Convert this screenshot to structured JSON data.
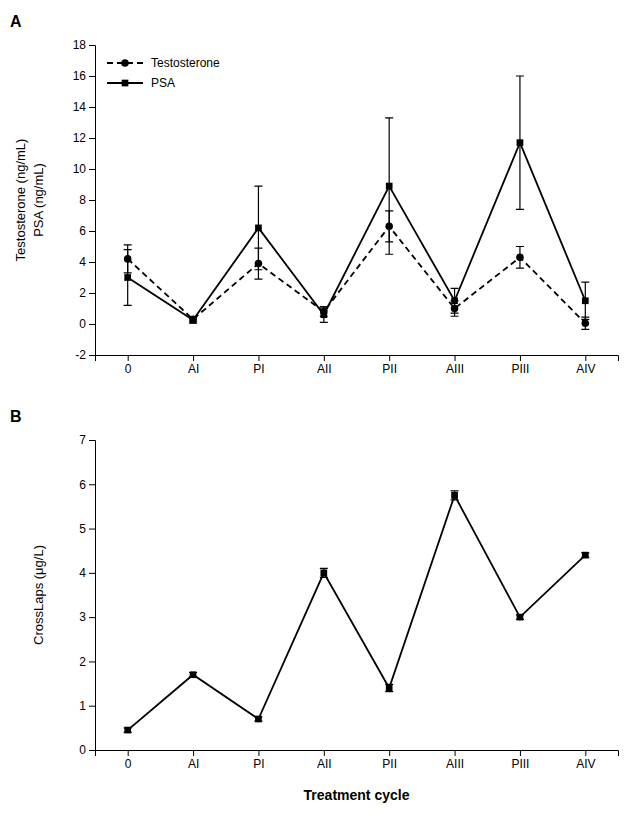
{
  "chart_data": [
    {
      "type": "line",
      "title": "A",
      "categories": [
        "0",
        "AI",
        "PI",
        "AII",
        "PII",
        "AIII",
        "PIII",
        "AIV"
      ],
      "ylabel": [
        "Testosterone (ng/mL)",
        "PSA (ng/mL)"
      ],
      "ylim": [
        -2,
        18
      ],
      "yticks": [
        -2,
        0,
        2,
        4,
        6,
        8,
        10,
        12,
        14,
        16,
        18
      ],
      "grid": false,
      "legend": "upper left",
      "series": [
        {
          "name": "Testosterone",
          "color": "#000000",
          "marker": "circle",
          "line_style": "dashed",
          "values": [
            4.2,
            0.3,
            3.9,
            0.8,
            6.3,
            1.0,
            4.3,
            0.05
          ],
          "errors": [
            0.9,
            0.15,
            1.0,
            0.3,
            1.0,
            0.5,
            0.7,
            0.4
          ]
        },
        {
          "name": "PSA",
          "color": "#000000",
          "marker": "square",
          "line_style": "solid",
          "values": [
            3.0,
            0.25,
            6.2,
            0.6,
            8.9,
            1.5,
            11.7,
            1.5
          ],
          "errors": [
            1.8,
            0.2,
            2.7,
            0.5,
            4.4,
            0.8,
            4.3,
            1.2
          ]
        }
      ]
    },
    {
      "type": "line",
      "title": "B",
      "categories": [
        "0",
        "AI",
        "PI",
        "AII",
        "PII",
        "AIII",
        "PIII",
        "AIV"
      ],
      "ylabel": "CrossLaps (μg/L)",
      "xlabel": "Treatment cycle",
      "ylim": [
        0,
        7
      ],
      "yticks": [
        0,
        1,
        2,
        3,
        4,
        5,
        6,
        7
      ],
      "grid": false,
      "series": [
        {
          "color": "#000000",
          "marker": "square",
          "line_style": "solid",
          "values": [
            0.45,
            1.7,
            0.7,
            4.0,
            1.4,
            5.75,
            3.0,
            4.4
          ],
          "errors": [
            0.05,
            0.05,
            0.05,
            0.1,
            0.08,
            0.1,
            0.05,
            0.05
          ]
        }
      ]
    }
  ]
}
